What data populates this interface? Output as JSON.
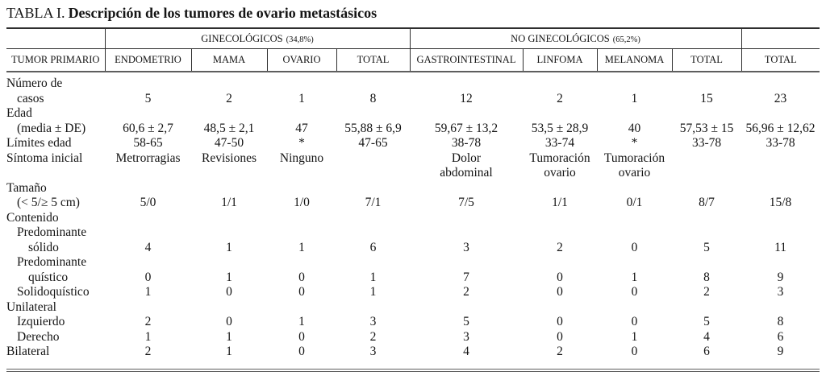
{
  "title": {
    "label": "TABLA I.",
    "description": "Descripción de los tumores de ovario metastásicos"
  },
  "table": {
    "row_header": "TUMOR PRIMARIO",
    "groups": [
      {
        "name": "GINECOLÓGICOS",
        "pct": "(34,8%)",
        "columns": [
          "ENDOMETRIO",
          "MAMA",
          "OVARIO",
          "TOTAL"
        ]
      },
      {
        "name": "NO GINECOLÓGICOS",
        "pct": "(65,2%)",
        "columns": [
          "GASTROINTESTINAL",
          "LINFOMA",
          "MELANOMA",
          "TOTAL"
        ]
      }
    ],
    "overall_column": "TOTAL",
    "body_lines": [
      {
        "label": "Número de",
        "indent": 0,
        "values": null
      },
      {
        "label": "casos",
        "indent": 1,
        "values": [
          "5",
          "2",
          "1",
          "8",
          "12",
          "2",
          "1",
          "15",
          "23"
        ]
      },
      {
        "label": "Edad",
        "indent": 0,
        "values": null
      },
      {
        "label": "(media ± DE)",
        "indent": 1,
        "values": [
          "60,6 ± 2,7",
          "48,5 ± 2,1",
          "47",
          "55,88 ± 6,9",
          "59,67 ± 13,2",
          "53,5 ± 28,9",
          "40",
          "57,53 ± 15",
          "56,96 ± 12,62"
        ]
      },
      {
        "label": "Límites edad",
        "indent": 0,
        "values": [
          "58-65",
          "47-50",
          "*",
          "47-65",
          "38-78",
          "33-74",
          "*",
          "33-78",
          "33-78"
        ]
      },
      {
        "label": "Síntoma inicial",
        "indent": 0,
        "values": [
          "Metrorragias",
          "Revisiones",
          "Ninguno",
          "",
          "Dolor\nabdominal",
          "Tumoración\novario",
          "Tumoración\novario",
          "",
          ""
        ]
      },
      {
        "label": "Tamaño",
        "indent": 0,
        "values": null
      },
      {
        "label": "(< 5/≥ 5 cm)",
        "indent": 1,
        "values": [
          "5/0",
          "1/1",
          "1/0",
          "7/1",
          "7/5",
          "1/1",
          "0/1",
          "8/7",
          "15/8"
        ]
      },
      {
        "label": "Contenido",
        "indent": 0,
        "values": null
      },
      {
        "label": "Predominante",
        "indent": 1,
        "values": null
      },
      {
        "label": "sólido",
        "indent": 2,
        "values": [
          "4",
          "1",
          "1",
          "6",
          "3",
          "2",
          "0",
          "5",
          "11"
        ]
      },
      {
        "label": "Predominante",
        "indent": 1,
        "values": null
      },
      {
        "label": "quístico",
        "indent": 2,
        "values": [
          "0",
          "1",
          "0",
          "1",
          "7",
          "0",
          "1",
          "8",
          "9"
        ]
      },
      {
        "label": "Solidoquístico",
        "indent": 1,
        "values": [
          "1",
          "0",
          "0",
          "1",
          "2",
          "0",
          "0",
          "2",
          "3"
        ]
      },
      {
        "label": "Unilateral",
        "indent": 0,
        "values": null
      },
      {
        "label": "Izquierdo",
        "indent": 1,
        "values": [
          "2",
          "0",
          "1",
          "3",
          "5",
          "0",
          "0",
          "5",
          "8"
        ]
      },
      {
        "label": "Derecho",
        "indent": 1,
        "values": [
          "1",
          "1",
          "0",
          "2",
          "3",
          "0",
          "1",
          "4",
          "6"
        ]
      },
      {
        "label": "Bilateral",
        "indent": 0,
        "values": [
          "2",
          "1",
          "0",
          "3",
          "4",
          "2",
          "0",
          "6",
          "9"
        ]
      }
    ]
  }
}
